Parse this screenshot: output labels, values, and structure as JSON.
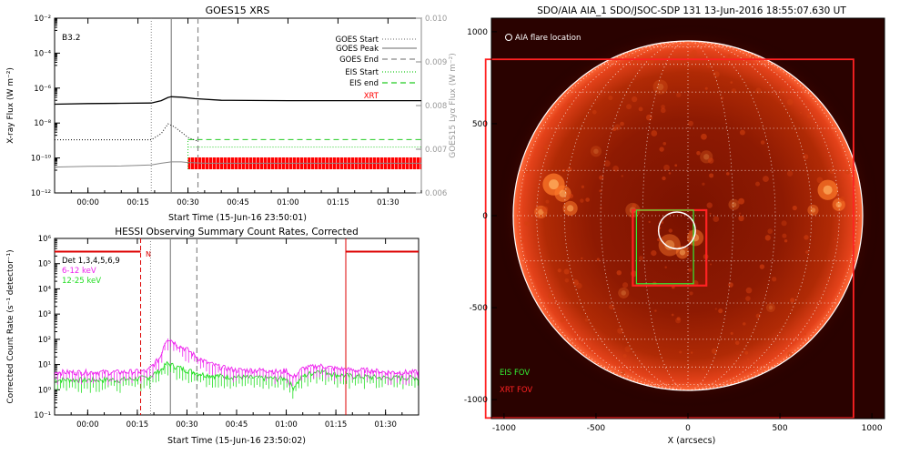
{
  "chart_data": [
    {
      "type": "line",
      "title": "GOES15 XRS",
      "xlabel": "Start Time (15-Jun-16 23:50:01)",
      "ylabel": "X-ray Flux (W m⁻²)",
      "y2label": "GOES15 Lyα Flux (W m⁻²)",
      "yscale": "log",
      "ylim": [
        1e-12,
        0.01
      ],
      "y2lim": [
        0.006,
        0.01
      ],
      "xlim_min": [
        -10,
        100
      ],
      "xticks": [
        "00:00",
        "00:15",
        "00:30",
        "00:45",
        "01:00",
        "01:15",
        "01:30"
      ],
      "yticks": [
        "10⁻²",
        "10⁻⁴",
        "10⁻⁶",
        "10⁻⁸",
        "10⁻¹⁰",
        "10⁻¹²"
      ],
      "y2ticks": [
        "0.010",
        "0.009",
        "0.008",
        "0.007",
        "0.006"
      ],
      "annotation": "B3.2",
      "vlines": {
        "goes_start": 19,
        "goes_peak": 25,
        "goes_end": 33
      },
      "eis_start": 30,
      "xrt_range": [
        30,
        100
      ],
      "legend": [
        {
          "label": "GOES Start",
          "color": "#888888",
          "style": "dotted"
        },
        {
          "label": "GOES Peak",
          "color": "#888888",
          "style": "solid"
        },
        {
          "label": "GOES End",
          "color": "#888888",
          "style": "dashed"
        },
        {
          "label": "EIS Start",
          "color": "#22cc22",
          "style": "dotted"
        },
        {
          "label": "EIS end",
          "color": "#22cc22",
          "style": "dashed"
        },
        {
          "label": "XRT",
          "color": "#ff0000",
          "style": "block"
        }
      ],
      "series": [
        {
          "color": "#000000",
          "x": [
            -10,
            0,
            10,
            19,
            22,
            24,
            25,
            28,
            32,
            40,
            60,
            80,
            100
          ],
          "y": [
            1.2e-07,
            1.3e-07,
            1.35e-07,
            1.4e-07,
            1.9e-07,
            2.9e-07,
            3.2e-07,
            3e-07,
            2.5e-07,
            2e-07,
            1.9e-07,
            1.9e-07,
            1.9e-07
          ]
        },
        {
          "color": "#888888",
          "x": [
            -10,
            0,
            10,
            19,
            22,
            25,
            28,
            30,
            35,
            50,
            70,
            100
          ],
          "y": [
            3e-11,
            3.3e-11,
            3.5e-11,
            4e-11,
            5e-11,
            6e-11,
            6e-11,
            5.5e-11,
            5e-11,
            5e-11,
            5e-11,
            5e-11
          ]
        },
        {
          "color": "#000000",
          "style": "dotted",
          "x": [
            -10,
            10,
            19,
            22,
            24,
            26,
            28,
            30,
            33
          ],
          "y": [
            1.1e-09,
            1.1e-09,
            1.1e-09,
            2.5e-09,
            9e-09,
            6e-09,
            3e-09,
            1.5e-09,
            9e-10
          ]
        },
        {
          "color": "#22cc22",
          "style": "dotted",
          "x": [
            30,
            100
          ],
          "y2": [
            0.00705,
            0.00705
          ]
        },
        {
          "color": "#22cc22",
          "style": "dashed",
          "x": [
            30,
            100
          ],
          "y2": [
            0.00722,
            0.00722
          ]
        }
      ]
    },
    {
      "type": "line",
      "title": "HESSI Observing Summary Count Rates, Corrected",
      "xlabel": "Start Time (15-Jun-16 23:50:02)",
      "ylabel": "Corrected Count Rate (s⁻¹ detector⁻¹)",
      "yscale": "log",
      "ylim": [
        0.1,
        1000000
      ],
      "xlim_min": [
        -10,
        100
      ],
      "xticks": [
        "00:00",
        "00:15",
        "00:30",
        "00:45",
        "01:00",
        "01:15",
        "01:30"
      ],
      "yticks": [
        "10⁶",
        "10⁵",
        "10⁴",
        "10³",
        "10²",
        "10¹",
        "10⁰",
        "10⁻¹"
      ],
      "legend": [
        {
          "label": "Det 1,3,4,5,6,9",
          "color": "#000000"
        },
        {
          "label": "6-12 keV",
          "color": "#ee22ee"
        },
        {
          "label": "12-25 keV",
          "color": "#22dd22"
        }
      ],
      "night_label": "N",
      "vlines": {
        "red_dashed": 16,
        "goes_start": 19,
        "goes_peak": 25,
        "goes_end": 33,
        "red_solid": 78
      },
      "night_intervals": [
        [
          -10,
          16
        ],
        [
          78,
          100
        ]
      ],
      "night_level": 300000,
      "series": [
        {
          "name": "6-12 keV",
          "color": "#ee22ee",
          "x": [
            -10,
            0,
            10,
            18,
            22,
            23,
            24,
            25,
            27,
            30,
            33,
            36,
            40,
            45,
            50,
            55,
            58,
            60,
            62,
            65,
            70,
            75,
            80,
            85,
            90,
            95,
            100
          ],
          "y": [
            5,
            5,
            5,
            5.5,
            20,
            60,
            110,
            100,
            60,
            40,
            20,
            12,
            8,
            6,
            6,
            6,
            5,
            6,
            3,
            7,
            9,
            7,
            6,
            6,
            5,
            5,
            5
          ]
        },
        {
          "name": "12-25 keV",
          "color": "#22dd22",
          "x": [
            -10,
            0,
            10,
            18,
            22,
            24,
            25,
            27,
            30,
            35,
            40,
            50,
            58,
            60,
            62,
            65,
            70,
            75,
            80,
            90,
            100
          ],
          "y": [
            2.5,
            2.5,
            2.5,
            3,
            6,
            11,
            10,
            8,
            6,
            4,
            3.5,
            3,
            2.8,
            3,
            1.2,
            3.5,
            6,
            4,
            3.5,
            3,
            3
          ]
        }
      ]
    },
    {
      "type": "image",
      "title": "SDO/AIA AIA_1 SDO/JSOC-SDP 131 13-Jun-2016 18:55:07.630 UT",
      "xlabel": "X (arcsecs)",
      "xlim": [
        -1100,
        1100
      ],
      "ylim": [
        -1100,
        1100
      ],
      "xticks": [
        "-1000",
        "-500",
        "0",
        "500",
        "1000"
      ],
      "yticks": [
        "1000",
        "500",
        "0",
        "-500",
        "-1000"
      ],
      "legend": [
        {
          "label": "AIA flare location",
          "color": "#ffffff"
        },
        {
          "label": "EIS FOV",
          "color": "#33ee33"
        },
        {
          "label": "XRT FOV",
          "color": "#ff2222"
        }
      ],
      "xrt_fov_large": [
        -1100,
        -1100,
        900,
        850
      ],
      "xrt_fov_small": [
        -300,
        -380,
        100,
        30
      ],
      "eis_fov": [
        -280,
        -370,
        30,
        30
      ],
      "flare_circle": {
        "x": -60,
        "y": -80,
        "r": 100
      },
      "solar_radius": 950
    }
  ]
}
